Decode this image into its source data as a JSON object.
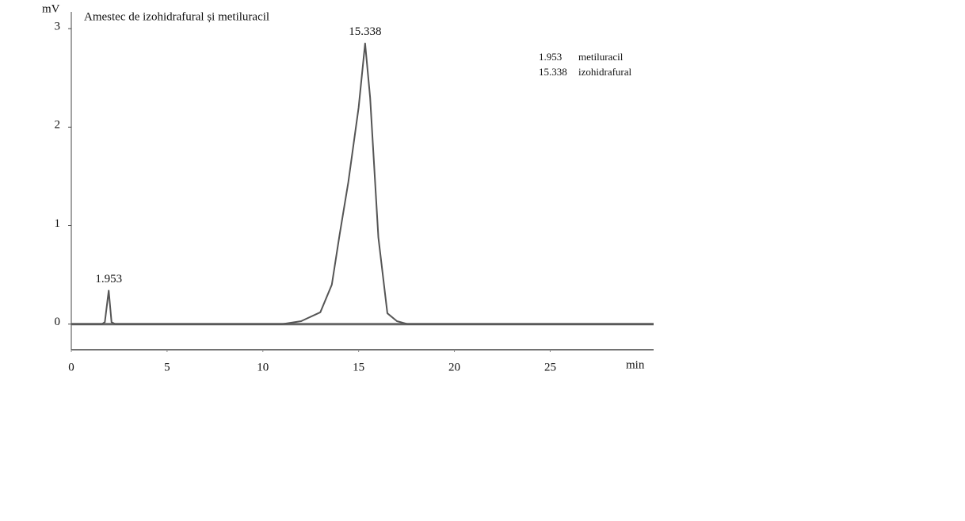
{
  "chart_data": {
    "type": "line",
    "title": "Amestec de izohidrafural și metiluracil",
    "y_label": "mV",
    "x_label": "min",
    "x": [
      0,
      1.6,
      1.75,
      1.953,
      2.1,
      2.3,
      11.0,
      12.0,
      13.0,
      13.6,
      14.0,
      14.46,
      15.0,
      15.338,
      15.6,
      16.03,
      16.5,
      17.0,
      17.56,
      30.4
    ],
    "series": [
      {
        "color": "#555555",
        "values": [
          0,
          0,
          0.02,
          0.34,
          0.02,
          0,
          0,
          0.03,
          0.12,
          0.4,
          0.9,
          1.44,
          2.2,
          2.85,
          2.3,
          0.88,
          0.11,
          0.03,
          0,
          0
        ]
      }
    ],
    "xlim": [
      0,
      30.4
    ],
    "ylim": [
      -0.26,
      3.17
    ],
    "xticks": [
      0,
      5,
      10,
      15,
      20,
      25
    ],
    "yticks": [
      0,
      1,
      2,
      3
    ],
    "peaks": [
      {
        "x": 1.953,
        "y": 0.34
      },
      {
        "x": 15.338,
        "y": 2.85
      }
    ],
    "peak_table": [
      [
        "1.953",
        "metiluracil"
      ],
      [
        "15.338",
        "izohidrafural"
      ]
    ]
  }
}
